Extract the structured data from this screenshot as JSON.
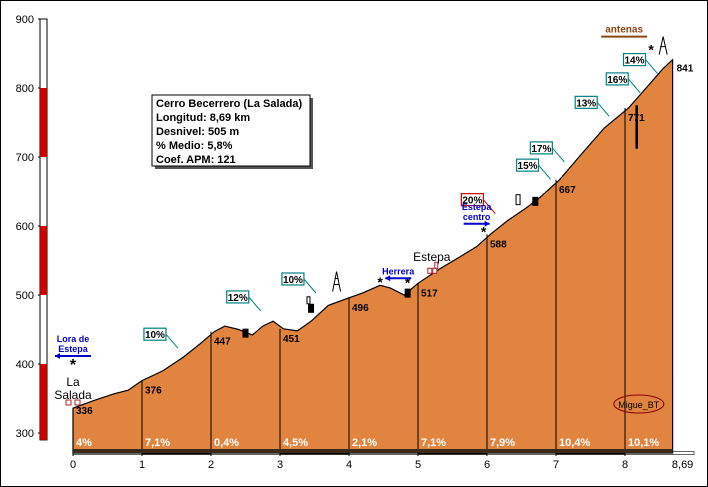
{
  "chart_data": {
    "type": "area",
    "title": "Cerro Becerrero (La Salada)",
    "info": [
      "Cerro Becerrero (La Salada)",
      "Longitud: 8,69 km",
      "Desnivel: 505 m",
      "% Medio: 5,8%",
      "Coef. APM: 121"
    ],
    "xlabel": "",
    "ylabel": "",
    "xlim": [
      0,
      8.69
    ],
    "ylim": [
      290,
      900
    ],
    "y_ticks": [
      "300",
      "400",
      "500",
      "600",
      "700",
      "800",
      "900"
    ],
    "x_ticks": [
      "0",
      "1",
      "2",
      "3",
      "4",
      "5",
      "6",
      "7",
      "8"
    ],
    "x_end_label": "8,69",
    "profile": [
      [
        0,
        336
      ],
      [
        0.3,
        347
      ],
      [
        0.6,
        357
      ],
      [
        0.8,
        362
      ],
      [
        1.0,
        376
      ],
      [
        1.3,
        390
      ],
      [
        1.6,
        410
      ],
      [
        1.85,
        430
      ],
      [
        2.05,
        447
      ],
      [
        2.2,
        455
      ],
      [
        2.4,
        450
      ],
      [
        2.6,
        442
      ],
      [
        2.75,
        455
      ],
      [
        2.9,
        462
      ],
      [
        3.05,
        451
      ],
      [
        3.25,
        448
      ],
      [
        3.45,
        462
      ],
      [
        3.7,
        485
      ],
      [
        4.0,
        496
      ],
      [
        4.2,
        503
      ],
      [
        4.45,
        514
      ],
      [
        4.6,
        510
      ],
      [
        4.8,
        500
      ],
      [
        5.0,
        517
      ],
      [
        5.3,
        537
      ],
      [
        5.6,
        555
      ],
      [
        5.85,
        570
      ],
      [
        6.05,
        588
      ],
      [
        6.3,
        608
      ],
      [
        6.55,
        625
      ],
      [
        6.75,
        640
      ],
      [
        7.05,
        667
      ],
      [
        7.35,
        702
      ],
      [
        7.7,
        742
      ],
      [
        8.05,
        771
      ],
      [
        8.35,
        805
      ],
      [
        8.55,
        828
      ],
      [
        8.69,
        841
      ]
    ],
    "km_markers": [
      {
        "km": 0,
        "elevation": 336,
        "label": "336"
      },
      {
        "km": 1,
        "elevation": 376,
        "label": "376"
      },
      {
        "km": 2,
        "elevation": 447,
        "label": "447"
      },
      {
        "km": 3,
        "elevation": 451,
        "label": "451"
      },
      {
        "km": 4,
        "elevation": 496,
        "label": "496"
      },
      {
        "km": 5,
        "elevation": 517,
        "label": "517"
      },
      {
        "km": 6,
        "elevation": 588,
        "label": "588"
      },
      {
        "km": 7,
        "elevation": 667,
        "label": "667"
      },
      {
        "km": 8,
        "elevation": 771,
        "label": "771"
      },
      {
        "km": 8.69,
        "elevation": 841,
        "label": "841"
      }
    ],
    "segment_gradients": [
      "4%",
      "7,1%",
      "0,4%",
      "4,5%",
      "2,1%",
      "7,1%",
      "7,9%",
      "10,4%",
      "10,1%"
    ],
    "max_gradients": [
      {
        "label": "10%",
        "km": 1.55,
        "elev": 420
      },
      {
        "label": "12%",
        "km": 2.75,
        "elev": 474
      },
      {
        "label": "10%",
        "km": 3.55,
        "elev": 500
      },
      {
        "label": "20%",
        "km": 6.15,
        "elev": 615
      },
      {
        "label": "15%",
        "km": 6.95,
        "elev": 665
      },
      {
        "label": "17%",
        "km": 7.15,
        "elev": 690
      },
      {
        "label": "13%",
        "km": 7.8,
        "elev": 756
      },
      {
        "label": "16%",
        "km": 8.25,
        "elev": 790
      },
      {
        "label": "14%",
        "km": 8.5,
        "elev": 818
      }
    ],
    "places": {
      "start": "La\nSalada",
      "estepa": "Estepa",
      "antenas": "antenas",
      "author": "Migue_BT"
    },
    "directions": [
      {
        "label": "Lora de\nEstepa",
        "km": 0.25,
        "dir": "left"
      },
      {
        "label": "Herrera",
        "km": 4.8,
        "dir": "left"
      },
      {
        "label": "Estepa\ncentro",
        "km": 5.85,
        "dir": "right"
      }
    ],
    "colors": {
      "fill": "#e0843f",
      "border": "#000000",
      "axis_red": "#cc0000",
      "label_box_border": "#008080",
      "direction_blue": "#0000cc",
      "antenas_brown": "#8b4513"
    }
  }
}
